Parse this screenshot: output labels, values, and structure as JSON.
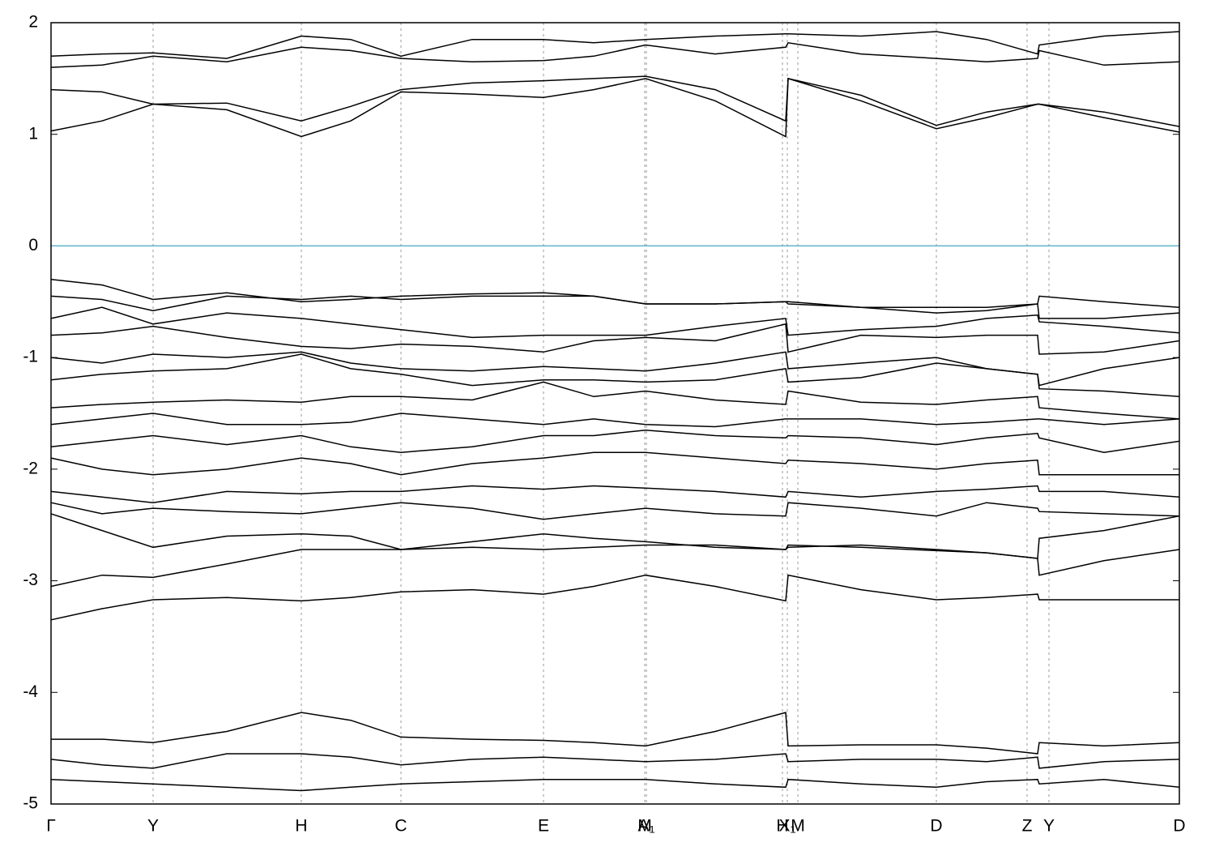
{
  "chart_data": {
    "type": "line",
    "color": "#000000",
    "grid": true,
    "zero_line": {
      "value": 0,
      "color": "#5fb4c9"
    },
    "xlim": [
      0,
      1393
    ],
    "ylim": [
      -5,
      2
    ],
    "yticks": [
      -5,
      -4,
      -3,
      -2,
      -1,
      0,
      1,
      2
    ],
    "xticks": [
      {
        "value": 0,
        "label": "Γ"
      },
      {
        "value": 126,
        "label": "Y"
      },
      {
        "value": 309,
        "label": "H"
      },
      {
        "value": 432,
        "label": "C"
      },
      {
        "value": 608,
        "label": "E"
      },
      {
        "value": 733,
        "label": "M"
      },
      {
        "value": 735,
        "label": "A₁"
      },
      {
        "value": 903,
        "label": "H"
      },
      {
        "value": 909,
        "label": "X₁"
      },
      {
        "value": 922,
        "label": "M"
      },
      {
        "value": 1093,
        "label": "D"
      },
      {
        "value": 1205,
        "label": "Z"
      },
      {
        "value": 1232,
        "label": "Y"
      },
      {
        "value": 1393,
        "label": "D"
      }
    ],
    "x": [
      0,
      63,
      126,
      217,
      309,
      370,
      432,
      520,
      608,
      670,
      734,
      820,
      907,
      910,
      1000,
      1093,
      1155,
      1218,
      1220,
      1300,
      1393
    ],
    "series": [
      {
        "values": [
          1.03,
          1.12,
          1.27,
          1.22,
          0.98,
          1.12,
          1.38,
          1.36,
          1.33,
          1.4,
          1.5,
          1.3,
          0.98,
          1.5,
          1.3,
          1.05,
          1.15,
          1.27,
          1.27,
          1.15,
          1.02
        ]
      },
      {
        "values": [
          1.4,
          1.38,
          1.27,
          1.28,
          1.12,
          1.25,
          1.4,
          1.46,
          1.48,
          1.5,
          1.52,
          1.4,
          1.12,
          1.5,
          1.35,
          1.08,
          1.2,
          1.27,
          1.27,
          1.2,
          1.07
        ]
      },
      {
        "values": [
          1.6,
          1.62,
          1.7,
          1.65,
          1.78,
          1.75,
          1.68,
          1.65,
          1.66,
          1.7,
          1.8,
          1.72,
          1.78,
          1.82,
          1.72,
          1.68,
          1.65,
          1.68,
          1.75,
          1.62,
          1.65
        ]
      },
      {
        "values": [
          1.7,
          1.72,
          1.73,
          1.68,
          1.88,
          1.85,
          1.7,
          1.85,
          1.85,
          1.82,
          1.85,
          1.88,
          1.9,
          1.9,
          1.88,
          1.92,
          1.85,
          1.72,
          1.8,
          1.88,
          1.92
        ]
      },
      {
        "values": [
          -0.3,
          -0.35,
          -0.48,
          -0.42,
          -0.5,
          -0.48,
          -0.45,
          -0.43,
          -0.42,
          -0.45,
          -0.52,
          -0.52,
          -0.5,
          -0.5,
          -0.55,
          -0.6,
          -0.58,
          -0.52,
          -0.45,
          -0.5,
          -0.55
        ]
      },
      {
        "values": [
          -0.45,
          -0.48,
          -0.58,
          -0.45,
          -0.48,
          -0.45,
          -0.48,
          -0.45,
          -0.45,
          -0.45,
          -0.52,
          -0.52,
          -0.5,
          -0.52,
          -0.55,
          -0.55,
          -0.55,
          -0.52,
          -0.65,
          -0.65,
          -0.6
        ]
      },
      {
        "values": [
          -0.65,
          -0.55,
          -0.7,
          -0.6,
          -0.65,
          -0.7,
          -0.75,
          -0.82,
          -0.8,
          -0.8,
          -0.8,
          -0.72,
          -0.65,
          -0.8,
          -0.75,
          -0.72,
          -0.65,
          -0.62,
          -0.68,
          -0.72,
          -0.78
        ]
      },
      {
        "values": [
          -0.8,
          -0.78,
          -0.72,
          -0.82,
          -0.9,
          -0.92,
          -0.88,
          -0.9,
          -0.95,
          -0.85,
          -0.82,
          -0.85,
          -0.7,
          -0.95,
          -0.8,
          -0.82,
          -0.8,
          -0.8,
          -0.97,
          -0.95,
          -0.85
        ]
      },
      {
        "values": [
          -1.0,
          -1.05,
          -0.97,
          -1.0,
          -0.95,
          -1.05,
          -1.1,
          -1.12,
          -1.08,
          -1.1,
          -1.12,
          -1.05,
          -0.95,
          -1.1,
          -1.05,
          -1.0,
          -1.1,
          -1.15,
          -1.25,
          -1.1,
          -1.0
        ]
      },
      {
        "values": [
          -1.2,
          -1.15,
          -1.12,
          -1.1,
          -0.97,
          -1.1,
          -1.15,
          -1.25,
          -1.2,
          -1.2,
          -1.22,
          -1.2,
          -1.1,
          -1.22,
          -1.18,
          -1.05,
          -1.1,
          -1.15,
          -1.28,
          -1.3,
          -1.35
        ]
      },
      {
        "values": [
          -1.45,
          -1.42,
          -1.4,
          -1.38,
          -1.4,
          -1.35,
          -1.35,
          -1.38,
          -1.22,
          -1.35,
          -1.3,
          -1.38,
          -1.42,
          -1.3,
          -1.4,
          -1.42,
          -1.38,
          -1.35,
          -1.45,
          -1.5,
          -1.55
        ]
      },
      {
        "values": [
          -1.6,
          -1.55,
          -1.5,
          -1.6,
          -1.6,
          -1.58,
          -1.5,
          -1.55,
          -1.6,
          -1.55,
          -1.6,
          -1.62,
          -1.55,
          -1.55,
          -1.55,
          -1.6,
          -1.58,
          -1.55,
          -1.55,
          -1.6,
          -1.55
        ]
      },
      {
        "values": [
          -1.8,
          -1.75,
          -1.7,
          -1.78,
          -1.7,
          -1.8,
          -1.85,
          -1.8,
          -1.7,
          -1.7,
          -1.65,
          -1.7,
          -1.72,
          -1.7,
          -1.72,
          -1.78,
          -1.72,
          -1.68,
          -1.72,
          -1.85,
          -1.75
        ]
      },
      {
        "values": [
          -1.9,
          -2.0,
          -2.05,
          -2.0,
          -1.9,
          -1.95,
          -2.05,
          -1.95,
          -1.9,
          -1.85,
          -1.85,
          -1.9,
          -1.95,
          -1.92,
          -1.95,
          -2.0,
          -1.95,
          -1.92,
          -2.05,
          -2.05,
          -2.05
        ]
      },
      {
        "values": [
          -2.2,
          -2.25,
          -2.3,
          -2.2,
          -2.22,
          -2.2,
          -2.2,
          -2.15,
          -2.18,
          -2.15,
          -2.17,
          -2.2,
          -2.25,
          -2.2,
          -2.25,
          -2.2,
          -2.18,
          -2.15,
          -2.2,
          -2.2,
          -2.25
        ]
      },
      {
        "values": [
          -2.3,
          -2.4,
          -2.35,
          -2.38,
          -2.4,
          -2.35,
          -2.3,
          -2.35,
          -2.45,
          -2.4,
          -2.35,
          -2.4,
          -2.42,
          -2.3,
          -2.35,
          -2.42,
          -2.3,
          -2.35,
          -2.38,
          -2.4,
          -2.42
        ]
      },
      {
        "values": [
          -2.4,
          -2.55,
          -2.7,
          -2.6,
          -2.58,
          -2.6,
          -2.72,
          -2.65,
          -2.58,
          -2.62,
          -2.65,
          -2.7,
          -2.72,
          -2.68,
          -2.7,
          -2.73,
          -2.75,
          -2.8,
          -2.62,
          -2.55,
          -2.42
        ]
      },
      {
        "values": [
          -3.05,
          -2.95,
          -2.97,
          -2.85,
          -2.72,
          -2.72,
          -2.72,
          -2.7,
          -2.72,
          -2.7,
          -2.68,
          -2.68,
          -2.72,
          -2.7,
          -2.68,
          -2.72,
          -2.75,
          -2.8,
          -2.95,
          -2.82,
          -2.72
        ]
      },
      {
        "values": [
          -3.35,
          -3.25,
          -3.17,
          -3.15,
          -3.18,
          -3.15,
          -3.1,
          -3.08,
          -3.12,
          -3.05,
          -2.95,
          -3.05,
          -3.18,
          -2.95,
          -3.08,
          -3.17,
          -3.15,
          -3.12,
          -3.17,
          -3.17,
          -3.17
        ]
      },
      {
        "values": [
          -4.42,
          -4.42,
          -4.45,
          -4.35,
          -4.18,
          -4.25,
          -4.4,
          -4.42,
          -4.43,
          -4.45,
          -4.48,
          -4.35,
          -4.18,
          -4.48,
          -4.47,
          -4.47,
          -4.5,
          -4.55,
          -4.45,
          -4.48,
          -4.45
        ]
      },
      {
        "values": [
          -4.6,
          -4.65,
          -4.68,
          -4.55,
          -4.55,
          -4.58,
          -4.65,
          -4.6,
          -4.58,
          -4.6,
          -4.62,
          -4.6,
          -4.55,
          -4.62,
          -4.6,
          -4.6,
          -4.62,
          -4.58,
          -4.68,
          -4.62,
          -4.6
        ]
      },
      {
        "values": [
          -4.78,
          -4.8,
          -4.82,
          -4.85,
          -4.88,
          -4.85,
          -4.82,
          -4.8,
          -4.78,
          -4.78,
          -4.78,
          -4.82,
          -4.85,
          -4.78,
          -4.82,
          -4.85,
          -4.8,
          -4.78,
          -4.82,
          -4.78,
          -4.85
        ]
      }
    ]
  }
}
